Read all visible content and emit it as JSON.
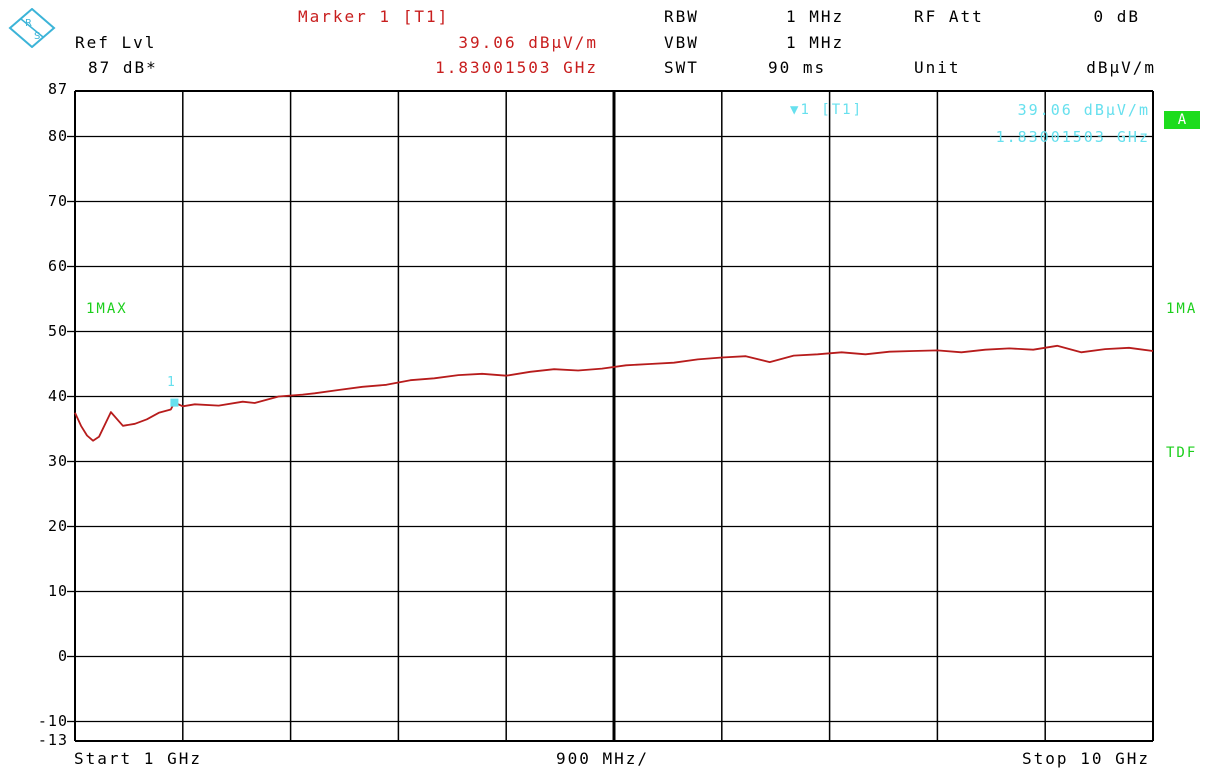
{
  "header": {
    "ref_lvl_label": "Ref Lvl",
    "ref_lvl_value": "87 dB*",
    "marker_title": "Marker 1 [T1]",
    "marker_level": "39.06 dBµV/m",
    "marker_freq": "1.83001503 GHz",
    "rbw_label": "RBW",
    "rbw_value": "1 MHz",
    "vbw_label": "VBW",
    "vbw_value": "1 MHz",
    "swt_label": "SWT",
    "swt_value": "90 ms",
    "rfatt_label": "RF Att",
    "rfatt_value": "0 dB",
    "unit_label": "Unit",
    "unit_value": "dBµV/m"
  },
  "marker_box": {
    "label": "1 [T1]",
    "level": "39.06 dBµV/m",
    "freq": "1.83001503 GHz",
    "point_label": "1"
  },
  "side": {
    "trace_left": "1MAX",
    "trace_right": "1MA",
    "tdf": "TDF",
    "badge": "A"
  },
  "footer": {
    "start": "Start 1 GHz",
    "span": "900 MHz/",
    "stop": "Stop 10 GHz"
  },
  "colors": {
    "trace": "#b71c1c",
    "marker": "#67e0ee",
    "grid": "#000000"
  },
  "chart_data": {
    "type": "line",
    "xlabel": "",
    "ylabel": "",
    "xlim": [
      1,
      10
    ],
    "ylim": [
      -13,
      87
    ],
    "yticks": [
      "87",
      "80",
      "70",
      "60",
      "50",
      "40",
      "30",
      "20",
      "10",
      "0",
      "-10",
      "-13"
    ],
    "grid": true,
    "series": [
      {
        "x": [
          1.0,
          1.05,
          1.1,
          1.15,
          1.2,
          1.3,
          1.4,
          1.5,
          1.6,
          1.7,
          1.8,
          1.83,
          1.9,
          2.0,
          2.2,
          2.4,
          2.5,
          2.7,
          2.9,
          3.0,
          3.2,
          3.4,
          3.6,
          3.8,
          4.0,
          4.2,
          4.4,
          4.6,
          4.8,
          5.0,
          5.2,
          5.4,
          5.6,
          5.8,
          6.0,
          6.2,
          6.4,
          6.6,
          6.8,
          7.0,
          7.2,
          7.4,
          7.6,
          7.8,
          8.0,
          8.2,
          8.4,
          8.6,
          8.8,
          9.0,
          9.2,
          9.4,
          9.6,
          9.8,
          10.0
        ],
        "values": [
          37.5,
          35.5,
          34.0,
          33.2,
          33.8,
          37.6,
          35.5,
          35.8,
          36.5,
          37.5,
          38.0,
          39.06,
          38.5,
          38.8,
          38.6,
          39.2,
          39.0,
          40.0,
          40.3,
          40.5,
          41.0,
          41.5,
          41.8,
          42.5,
          42.8,
          43.3,
          43.5,
          43.2,
          43.8,
          44.2,
          44.0,
          44.3,
          44.8,
          45.0,
          45.2,
          45.7,
          46.0,
          46.2,
          45.3,
          46.3,
          46.5,
          46.8,
          46.5,
          46.9,
          47.0,
          47.1,
          46.8,
          47.2,
          47.4,
          47.2,
          47.8,
          46.8,
          47.3,
          47.5,
          47.0
        ]
      }
    ],
    "marker": {
      "x": 1.83,
      "y": 39.06
    }
  }
}
